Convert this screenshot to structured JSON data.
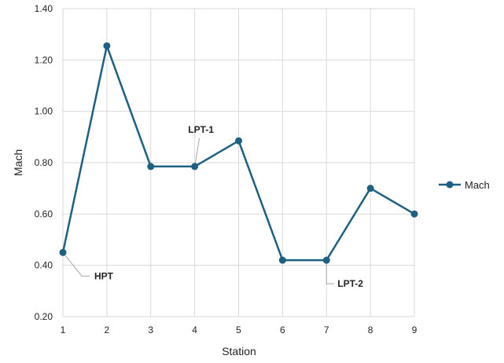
{
  "chart_data": {
    "type": "line",
    "x": [
      1,
      2,
      3,
      4,
      5,
      6,
      7,
      8,
      9
    ],
    "series": [
      {
        "name": "Mach",
        "values": [
          0.45,
          1.255,
          0.785,
          0.785,
          0.885,
          0.42,
          0.42,
          0.7,
          0.6
        ],
        "color": "#1f5f7f"
      }
    ],
    "xlabel": "Station",
    "ylabel": "Mach",
    "xlim": [
      1,
      9
    ],
    "ylim": [
      0.2,
      1.4
    ],
    "x_ticks": [
      "1",
      "2",
      "3",
      "4",
      "5",
      "6",
      "7",
      "8",
      "9"
    ],
    "y_ticks": [
      "0.20",
      "0.40",
      "0.60",
      "0.80",
      "1.00",
      "1.20",
      "1.40"
    ],
    "grid": true,
    "legend_position": "right",
    "annotations": [
      {
        "text": "HPT",
        "x": 1,
        "y": 0.45
      },
      {
        "text": "LPT-1",
        "x": 4,
        "y": 0.785
      },
      {
        "text": "LPT-2",
        "x": 7,
        "y": 0.42
      }
    ],
    "colors": {
      "grid": "#d9d9d9",
      "leader": "#a6a6a6",
      "text": "#222222"
    }
  }
}
